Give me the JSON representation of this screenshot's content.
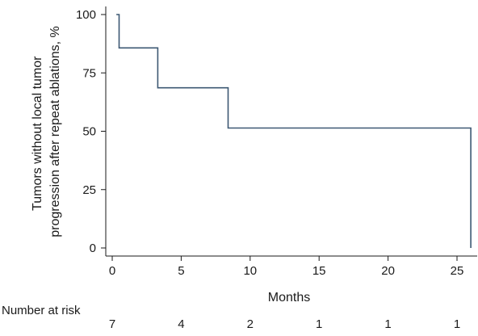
{
  "chart_data": {
    "type": "line",
    "title": "",
    "xlabel": "Months",
    "ylabel_lines": [
      "Tumors without local tumor",
      "progression after repeat ablations, %"
    ],
    "xlim": [
      0,
      26.5
    ],
    "ylim": [
      0,
      100
    ],
    "x_ticks": [
      0,
      5,
      10,
      15,
      20,
      25
    ],
    "y_ticks": [
      0,
      25,
      50,
      75,
      100
    ],
    "grid": false,
    "line_color": "#3d5873",
    "series": [
      {
        "step": true,
        "points": [
          {
            "x": 0.3,
            "y": 100
          },
          {
            "x": 0.5,
            "y": 100
          },
          {
            "x": 0.5,
            "y": 85.7
          },
          {
            "x": 3.3,
            "y": 85.7
          },
          {
            "x": 3.3,
            "y": 68.6
          },
          {
            "x": 8.4,
            "y": 68.6
          },
          {
            "x": 8.4,
            "y": 51.4
          },
          {
            "x": 26.0,
            "y": 51.4
          },
          {
            "x": 26.0,
            "y": 0
          }
        ]
      }
    ],
    "risk_table": {
      "label": "Number at risk",
      "entries": [
        {
          "x": 0,
          "count": "7"
        },
        {
          "x": 5,
          "count": "4"
        },
        {
          "x": 10,
          "count": "2"
        },
        {
          "x": 15,
          "count": "1"
        },
        {
          "x": 20,
          "count": "1"
        },
        {
          "x": 25,
          "count": "1"
        }
      ]
    }
  }
}
